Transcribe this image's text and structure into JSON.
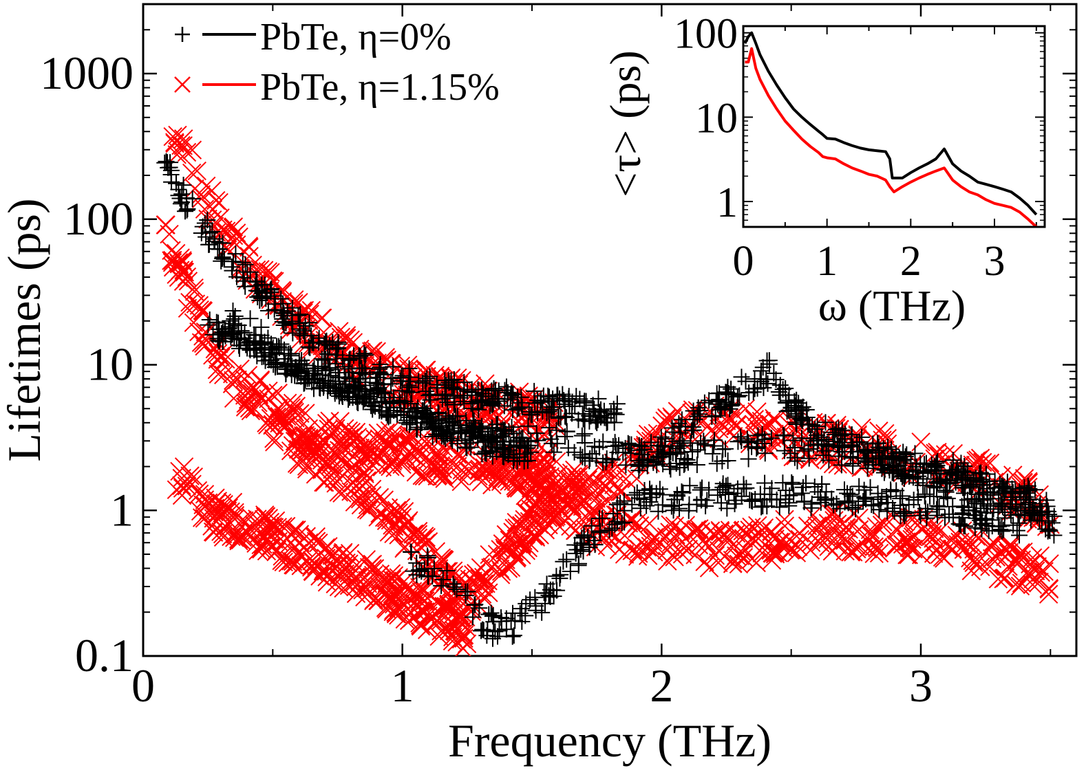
{
  "chart_data": [
    {
      "type": "scatter",
      "xlabel": "Frequency (THz)",
      "ylabel": "Lifetimes (ps)",
      "xlim": [
        0,
        3.6
      ],
      "ylim": [
        0.1,
        3000
      ],
      "yscale": "log",
      "x_ticks": [
        0,
        1,
        2,
        3
      ],
      "x_tick_labels": [
        "0",
        "1",
        "2",
        "3"
      ],
      "y_ticks": [
        0.1,
        1,
        10,
        100,
        1000
      ],
      "y_tick_labels": [
        "0.1",
        "1",
        "10",
        "100",
        "1000"
      ],
      "grid": false,
      "legend_position": "top-left",
      "series": [
        {
          "name": "PbTe, η=0%",
          "marker": "plus",
          "color": "#000000",
          "branches": [
            {
              "x": [
                0.08,
                0.15,
                0.25,
                0.4,
                0.55,
                0.7,
                0.9,
                1.1,
                1.3,
                1.5,
                1.7,
                1.83
              ],
              "y": [
                250,
                150,
                80,
                40,
                22,
                13,
                9,
                7,
                6,
                5.5,
                5,
                4.5
              ]
            },
            {
              "x": [
                0.3,
                0.45,
                0.6,
                0.8,
                1.0,
                1.2,
                1.4,
                1.6,
                1.8,
                2.0,
                2.2,
                2.4,
                2.6,
                2.8,
                3.0,
                3.2,
                3.4,
                3.52
              ],
              "y": [
                25,
                15,
                9,
                6.5,
                5,
                4,
                3.4,
                3,
                2.5,
                2.2,
                2.5,
                2.8,
                2.6,
                2.3,
                2,
                1.7,
                1.3,
                0.9
              ]
            },
            {
              "x": [
                1.9,
                2.0,
                2.1,
                2.2,
                2.3,
                2.4,
                2.42,
                2.5,
                2.6,
                2.8,
                3.0,
                3.2,
                3.4,
                3.52
              ],
              "y": [
                2.2,
                2.6,
                3.8,
                5,
                6.8,
                8.5,
                9.5,
                5,
                3.5,
                2.5,
                1.8,
                1.4,
                1.1,
                0.8
              ]
            },
            {
              "x": [
                1.0,
                1.1,
                1.2,
                1.3,
                1.38,
                1.45,
                1.55,
                1.65,
                1.75,
                1.85,
                1.95,
                2.05,
                2.2,
                2.5,
                2.8,
                3.1,
                3.4
              ],
              "y": [
                0.45,
                0.4,
                0.3,
                0.18,
                0.15,
                0.17,
                0.25,
                0.45,
                0.7,
                1.0,
                1.15,
                1.2,
                1.25,
                1.3,
                1.2,
                1.0,
                0.8
              ]
            },
            {
              "x": [
                0.25,
                0.35,
                0.45,
                0.55,
                0.7,
                0.9,
                1.1,
                1.3,
                1.5
              ],
              "y": [
                18,
                16,
                13,
                10,
                8,
                6,
                4,
                3,
                2.5
              ]
            }
          ]
        },
        {
          "name": "PbTe, η=1.15%",
          "marker": "cross",
          "color": "#ff0000",
          "branches": [
            {
              "x": [
                0.1,
                0.2,
                0.3,
                0.45,
                0.6,
                0.75,
                0.9,
                1.05,
                1.2,
                1.4,
                1.6
              ],
              "y": [
                450,
                200,
                90,
                40,
                20,
                13,
                9,
                7,
                6,
                5,
                4
              ]
            },
            {
              "x": [
                0.08,
                0.15,
                0.25,
                0.35,
                0.5,
                0.65,
                0.8,
                1.0,
                1.2,
                1.4,
                1.6
              ],
              "y": [
                100,
                40,
                15,
                8,
                5,
                3.5,
                3,
                2.5,
                2.2,
                2,
                1.8
              ]
            },
            {
              "x": [
                0.12,
                0.2,
                0.3,
                0.4,
                0.55,
                0.7,
                0.85,
                1.0,
                1.15,
                1.25
              ],
              "y": [
                2,
                1.2,
                0.9,
                0.75,
                0.6,
                0.45,
                0.35,
                0.25,
                0.18,
                0.15
              ]
            },
            {
              "x": [
                0.5,
                0.7,
                0.9,
                1.05,
                1.15,
                1.22,
                1.3,
                1.4,
                1.5,
                1.6,
                1.7
              ],
              "y": [
                4,
                2,
                1.2,
                0.6,
                0.35,
                0.25,
                0.3,
                0.5,
                0.8,
                1.2,
                1.5
              ]
            },
            {
              "x": [
                1.3,
                1.45,
                1.55,
                1.65,
                1.75,
                1.85,
                1.95,
                2.05,
                2.15,
                2.3,
                2.5,
                2.7,
                2.9,
                3.1,
                3.3,
                3.5
              ],
              "y": [
                2,
                1.8,
                1.5,
                1.2,
                1.3,
                1.7,
                2.5,
                3.5,
                4.2,
                3.8,
                3.2,
                2.8,
                2.5,
                2.0,
                1.5,
                1.0
              ]
            },
            {
              "x": [
                1.6,
                1.8,
                2.0,
                2.2,
                2.4,
                2.6,
                2.8,
                3.0,
                3.2,
                3.4,
                3.5
              ],
              "y": [
                0.9,
                0.7,
                0.6,
                0.55,
                0.6,
                0.7,
                0.7,
                0.65,
                0.5,
                0.4,
                0.35
              ]
            }
          ]
        }
      ]
    },
    {
      "type": "line",
      "xlabel": "ω (THz)",
      "ylabel": "<τ> (ps)",
      "xlim": [
        0,
        3.6
      ],
      "ylim": [
        0.5,
        120
      ],
      "yscale": "log",
      "x_ticks": [
        0,
        1,
        2,
        3
      ],
      "x_tick_labels": [
        "0",
        "1",
        "2",
        "3"
      ],
      "y_ticks": [
        1,
        10,
        100
      ],
      "y_tick_labels": [
        "1",
        "10",
        "100"
      ],
      "grid": false,
      "series": [
        {
          "color": "#000000",
          "x": [
            0.02,
            0.06,
            0.1,
            0.15,
            0.2,
            0.3,
            0.4,
            0.5,
            0.6,
            0.7,
            0.8,
            0.9,
            0.95,
            1.0,
            1.1,
            1.2,
            1.3,
            1.4,
            1.5,
            1.6,
            1.7,
            1.75,
            1.78,
            1.9,
            2.0,
            2.1,
            2.2,
            2.3,
            2.4,
            2.5,
            2.6,
            2.7,
            2.8,
            2.9,
            3.0,
            3.1,
            3.2,
            3.3,
            3.4,
            3.5
          ],
          "y": [
            75,
            90,
            100,
            75,
            55,
            35,
            24,
            17,
            12.5,
            10,
            8.2,
            6.8,
            6.2,
            5.6,
            5.5,
            5,
            4.6,
            4.3,
            4.1,
            4.0,
            3.9,
            3.2,
            1.9,
            1.9,
            2.2,
            2.5,
            2.8,
            3.2,
            4.2,
            2.8,
            2.3,
            2.0,
            1.7,
            1.6,
            1.5,
            1.4,
            1.3,
            1.1,
            0.9,
            0.7
          ]
        },
        {
          "color": "#ff0000",
          "x": [
            0.02,
            0.06,
            0.1,
            0.15,
            0.2,
            0.3,
            0.4,
            0.5,
            0.6,
            0.7,
            0.8,
            0.9,
            0.95,
            1.0,
            1.1,
            1.2,
            1.3,
            1.4,
            1.5,
            1.6,
            1.7,
            1.75,
            1.8,
            1.9,
            2.0,
            2.1,
            2.2,
            2.3,
            2.4,
            2.5,
            2.6,
            2.7,
            2.8,
            2.9,
            3.0,
            3.1,
            3.2,
            3.3,
            3.4,
            3.5
          ],
          "y": [
            45,
            45,
            65,
            38,
            28,
            18,
            12.5,
            9,
            7,
            5.5,
            4.5,
            3.8,
            3.4,
            3.3,
            3.2,
            2.8,
            2.5,
            2.3,
            2.1,
            2.0,
            1.8,
            1.5,
            1.3,
            1.5,
            1.7,
            1.9,
            2.1,
            2.3,
            2.5,
            1.8,
            1.5,
            1.3,
            1.2,
            1.05,
            0.95,
            0.9,
            0.85,
            0.75,
            0.62,
            0.5
          ]
        }
      ]
    }
  ]
}
